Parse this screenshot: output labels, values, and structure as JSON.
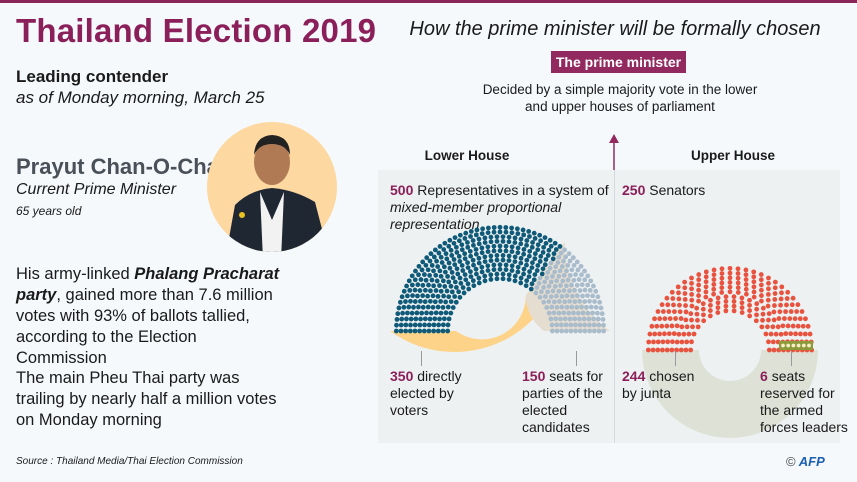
{
  "header": {
    "title": "Thailand Election 2019"
  },
  "contender": {
    "heading": "Leading contender",
    "as_of": "as of Monday  morning, March 25",
    "name": "Prayut Chan-O-Cha",
    "role": "Current Prime Minister",
    "age": "65 years old",
    "paragraph1_pre": "His army-linked ",
    "paragraph1_party": "Phalang Pracharat party",
    "paragraph1_post": ", gained more than 7.6 million votes with 93% of ballots tallied,  according to the Election Commission",
    "paragraph2": "The main Pheu Thai party was trailing by nearly half a million votes on Monday morning"
  },
  "process": {
    "heading": "How the prime minister will be formally chosen",
    "pm_box": "The prime minister",
    "decided": "Decided by a simple majority vote in the lower and upper houses of parliament"
  },
  "lower_house": {
    "label": "Lower House",
    "total": "500",
    "desc": " Representatives in a system of ",
    "desc_italic": "mixed-member proportional representation",
    "directly_elected": {
      "count": "350",
      "text": "directly elected by voters"
    },
    "party_list": {
      "count": "150",
      "text": "seats for parties of the elected candidates"
    },
    "colors": {
      "elected": "#0f5a78",
      "party": "#a9bccb",
      "band_elected": "#fdd38a",
      "band_party": "#e6ddd1"
    }
  },
  "upper_house": {
    "label": "Upper House",
    "total": "250",
    "desc": " Senators",
    "junta": {
      "count": "244",
      "text": "chosen by junta"
    },
    "armed": {
      "count": "6",
      "text": "seats reserved for the armed forces leaders"
    },
    "colors": {
      "junta": "#e8533f",
      "armed_box": "#8c9a3a",
      "armed_seat": "#f7efc6",
      "band": "#dde1d6"
    }
  },
  "footer": {
    "source": "Source : Thailand Media/Thai Election Commission",
    "copyright": "©",
    "logo": "AFP"
  },
  "accent": "#8a1f5a"
}
